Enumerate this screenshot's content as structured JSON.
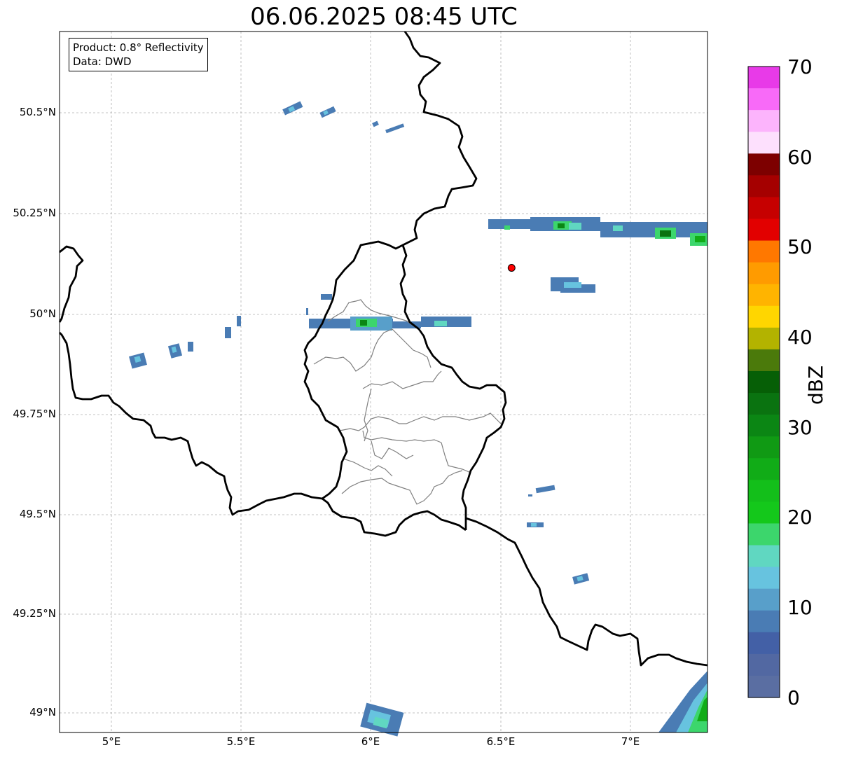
{
  "title": "06.06.2025 08:45 UTC",
  "info": {
    "product": "Product: 0.8° Reflectivity",
    "source": "Data: DWD"
  },
  "axes": {
    "x_ticks": [
      "5°E",
      "5.5°E",
      "6°E",
      "6.5°E",
      "7°E"
    ],
    "y_ticks": [
      "50.5°N",
      "50.25°N",
      "50°N",
      "49.75°N",
      "49.5°N",
      "49.25°N",
      "49°N"
    ],
    "lon_range": [
      4.82,
      7.3
    ],
    "lat_range": [
      48.95,
      50.7
    ]
  },
  "colorbar": {
    "label": "dBZ",
    "ticks": [
      "70",
      "60",
      "50",
      "40",
      "30",
      "20",
      "10",
      "0"
    ],
    "colors": [
      "#e83ae8",
      "#f86af8",
      "#fcb4fc",
      "#fde0fd",
      "#7d0000",
      "#a50000",
      "#c60000",
      "#e20000",
      "#ff7800",
      "#ff9b00",
      "#ffb400",
      "#ffd600",
      "#b3b300",
      "#4b7a0b",
      "#065f06",
      "#0a7310",
      "#0b8614",
      "#109a14",
      "#11ac17",
      "#13bf1a",
      "#14c81b",
      "#3cd66c",
      "#60d7c1",
      "#67c3df",
      "#589fca",
      "#4a7cb4",
      "#4360a6",
      "#5268a2",
      "#5a6ea2"
    ]
  },
  "marker": {
    "name": "Radar site",
    "lon": 6.55,
    "lat": 50.11,
    "color": "#ff0000"
  }
}
